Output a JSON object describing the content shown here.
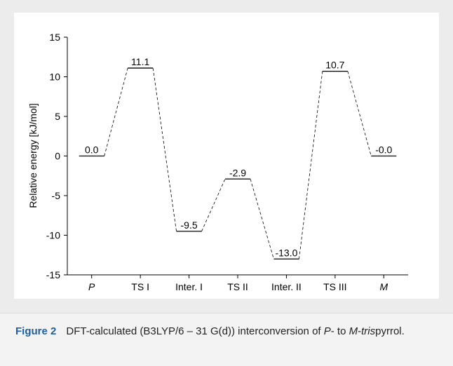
{
  "chart_data": {
    "type": "energy-level",
    "categories": [
      "P",
      "TS I",
      "Inter. I",
      "TS II",
      "Inter. II",
      "TS III",
      "M"
    ],
    "values": [
      0,
      11.1,
      -9.5,
      -2.9,
      -13,
      10.7,
      0
    ],
    "value_labels": [
      "0.0",
      "11.1",
      "-9.5",
      "-2.9",
      "-13.0",
      "10.7",
      "-0.0"
    ],
    "ylim": [
      -15,
      15
    ],
    "yticks": [
      15,
      10,
      5,
      0,
      -5,
      -10,
      -15
    ],
    "y_label": "Relative energy [kJ/mol]",
    "color": "#000000"
  },
  "caption": {
    "label": "Figure 2",
    "parts": [
      "DFT-calculated (B3LYP/6 – 31 G(d)) interconversion of ",
      "P",
      "- to ",
      "M",
      "-",
      "tris",
      "pyrrol."
    ]
  }
}
